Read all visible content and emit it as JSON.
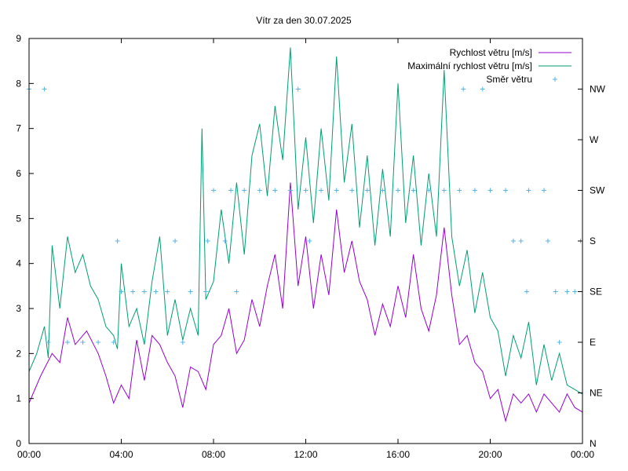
{
  "chart_data": {
    "type": "line",
    "title": "Vítr za den 30.07.2025",
    "xlabel": "",
    "ylabel": "",
    "x_range_minutes": [
      0,
      1440
    ],
    "x_ticks": [
      "00:00",
      "04:00",
      "08:00",
      "12:00",
      "16:00",
      "20:00",
      "00:00"
    ],
    "ylim": [
      0,
      9
    ],
    "y_ticks": [
      "0",
      "1",
      "2",
      "3",
      "4",
      "5",
      "6",
      "7",
      "8",
      "9"
    ],
    "y2_ticks": [
      "N",
      "NE",
      "E",
      "SE",
      "S",
      "SW",
      "W",
      "NW"
    ],
    "grid": false,
    "legend_position": "top-right",
    "series": [
      {
        "name": "Rychlost větru [m/s]",
        "color": "#9400d3",
        "style": "line",
        "points": [
          [
            "00:00",
            0.9
          ],
          [
            "00:30",
            1.5
          ],
          [
            "01:00",
            2.0
          ],
          [
            "01:20",
            1.8
          ],
          [
            "01:40",
            2.8
          ],
          [
            "02:00",
            2.2
          ],
          [
            "02:30",
            2.5
          ],
          [
            "03:00",
            2.0
          ],
          [
            "03:20",
            1.5
          ],
          [
            "03:40",
            0.9
          ],
          [
            "04:00",
            1.3
          ],
          [
            "04:20",
            1.0
          ],
          [
            "04:40",
            2.3
          ],
          [
            "05:00",
            1.4
          ],
          [
            "05:20",
            2.4
          ],
          [
            "05:40",
            2.2
          ],
          [
            "06:00",
            1.8
          ],
          [
            "06:20",
            1.5
          ],
          [
            "06:40",
            0.8
          ],
          [
            "07:00",
            1.7
          ],
          [
            "07:20",
            1.6
          ],
          [
            "07:40",
            1.2
          ],
          [
            "08:00",
            2.2
          ],
          [
            "08:20",
            2.4
          ],
          [
            "08:40",
            3.0
          ],
          [
            "09:00",
            2.0
          ],
          [
            "09:20",
            2.3
          ],
          [
            "09:40",
            3.2
          ],
          [
            "10:00",
            2.6
          ],
          [
            "10:20",
            3.5
          ],
          [
            "10:40",
            4.2
          ],
          [
            "11:00",
            3.0
          ],
          [
            "11:20",
            5.8
          ],
          [
            "11:40",
            3.5
          ],
          [
            "12:00",
            4.6
          ],
          [
            "12:20",
            3.0
          ],
          [
            "12:40",
            4.2
          ],
          [
            "13:00",
            3.3
          ],
          [
            "13:20",
            5.2
          ],
          [
            "13:40",
            3.8
          ],
          [
            "14:00",
            4.5
          ],
          [
            "14:20",
            3.6
          ],
          [
            "14:40",
            3.2
          ],
          [
            "15:00",
            2.4
          ],
          [
            "15:20",
            3.1
          ],
          [
            "15:40",
            2.6
          ],
          [
            "16:00",
            3.5
          ],
          [
            "16:20",
            2.8
          ],
          [
            "16:40",
            4.2
          ],
          [
            "17:00",
            3.0
          ],
          [
            "17:20",
            2.5
          ],
          [
            "17:40",
            3.3
          ],
          [
            "18:00",
            4.8
          ],
          [
            "18:20",
            3.3
          ],
          [
            "18:40",
            2.2
          ],
          [
            "19:00",
            2.4
          ],
          [
            "19:20",
            1.8
          ],
          [
            "19:40",
            1.6
          ],
          [
            "20:00",
            1.0
          ],
          [
            "20:20",
            1.2
          ],
          [
            "20:40",
            0.5
          ],
          [
            "21:00",
            1.1
          ],
          [
            "21:20",
            0.9
          ],
          [
            "21:40",
            1.1
          ],
          [
            "22:00",
            0.7
          ],
          [
            "22:20",
            1.1
          ],
          [
            "22:40",
            0.9
          ],
          [
            "23:00",
            0.7
          ],
          [
            "23:20",
            1.1
          ],
          [
            "23:40",
            0.8
          ],
          [
            "24:00",
            0.7
          ]
        ]
      },
      {
        "name": "Maximální rychlost větru [m/s]",
        "color": "#009e73",
        "style": "line",
        "points": [
          [
            "00:00",
            1.6
          ],
          [
            "00:20",
            2.0
          ],
          [
            "00:40",
            2.6
          ],
          [
            "00:50",
            1.9
          ],
          [
            "01:00",
            4.4
          ],
          [
            "01:20",
            3.0
          ],
          [
            "01:40",
            4.6
          ],
          [
            "02:00",
            3.8
          ],
          [
            "02:20",
            4.2
          ],
          [
            "02:40",
            3.5
          ],
          [
            "03:00",
            3.2
          ],
          [
            "03:20",
            2.6
          ],
          [
            "03:40",
            2.4
          ],
          [
            "03:50",
            2.1
          ],
          [
            "04:00",
            4.0
          ],
          [
            "04:20",
            2.6
          ],
          [
            "04:40",
            3.0
          ],
          [
            "05:00",
            2.2
          ],
          [
            "05:20",
            3.6
          ],
          [
            "05:40",
            4.6
          ],
          [
            "06:00",
            2.4
          ],
          [
            "06:20",
            3.2
          ],
          [
            "06:40",
            2.3
          ],
          [
            "07:00",
            3.0
          ],
          [
            "07:20",
            2.4
          ],
          [
            "07:30",
            7.0
          ],
          [
            "07:40",
            3.2
          ],
          [
            "08:00",
            3.6
          ],
          [
            "08:20",
            5.2
          ],
          [
            "08:40",
            4.0
          ],
          [
            "09:00",
            5.8
          ],
          [
            "09:20",
            4.2
          ],
          [
            "09:40",
            6.4
          ],
          [
            "10:00",
            7.1
          ],
          [
            "10:20",
            5.5
          ],
          [
            "10:40",
            7.5
          ],
          [
            "11:00",
            6.3
          ],
          [
            "11:20",
            8.8
          ],
          [
            "11:40",
            5.2
          ],
          [
            "12:00",
            6.8
          ],
          [
            "12:20",
            4.9
          ],
          [
            "12:40",
            7.0
          ],
          [
            "13:00",
            5.4
          ],
          [
            "13:20",
            8.6
          ],
          [
            "13:40",
            5.8
          ],
          [
            "14:00",
            7.1
          ],
          [
            "14:20",
            4.8
          ],
          [
            "14:40",
            6.4
          ],
          [
            "15:00",
            4.4
          ],
          [
            "15:20",
            6.1
          ],
          [
            "15:40",
            4.6
          ],
          [
            "16:00",
            8.0
          ],
          [
            "16:20",
            4.9
          ],
          [
            "16:40",
            6.4
          ],
          [
            "17:00",
            4.4
          ],
          [
            "17:20",
            6.0
          ],
          [
            "17:40",
            4.6
          ],
          [
            "18:00",
            8.3
          ],
          [
            "18:20",
            4.6
          ],
          [
            "18:40",
            3.5
          ],
          [
            "19:00",
            4.3
          ],
          [
            "19:20",
            2.9
          ],
          [
            "19:40",
            3.8
          ],
          [
            "20:00",
            2.8
          ],
          [
            "20:20",
            2.5
          ],
          [
            "20:40",
            1.5
          ],
          [
            "21:00",
            2.4
          ],
          [
            "21:20",
            1.9
          ],
          [
            "21:40",
            2.7
          ],
          [
            "22:00",
            1.3
          ],
          [
            "22:20",
            2.2
          ],
          [
            "22:40",
            1.4
          ],
          [
            "23:00",
            2.0
          ],
          [
            "23:20",
            1.3
          ],
          [
            "23:40",
            1.2
          ],
          [
            "24:00",
            1.1
          ]
        ]
      },
      {
        "name": "Směr větru",
        "color": "#56b4e9",
        "style": "points",
        "points": [
          [
            "00:00",
            "NW"
          ],
          [
            "00:40",
            "NW"
          ],
          [
            "00:50",
            "E"
          ],
          [
            "01:40",
            "E"
          ],
          [
            "02:20",
            "E"
          ],
          [
            "03:00",
            "E"
          ],
          [
            "03:40",
            "E"
          ],
          [
            "03:50",
            "S"
          ],
          [
            "04:00",
            "SE"
          ],
          [
            "04:30",
            "SE"
          ],
          [
            "05:00",
            "SE"
          ],
          [
            "05:30",
            "SE"
          ],
          [
            "06:00",
            "SE"
          ],
          [
            "06:20",
            "S"
          ],
          [
            "06:40",
            "E"
          ],
          [
            "07:00",
            "SE"
          ],
          [
            "07:40",
            "SE"
          ],
          [
            "07:45",
            "S"
          ],
          [
            "08:00",
            "SW"
          ],
          [
            "08:30",
            "S"
          ],
          [
            "08:45",
            "SW"
          ],
          [
            "09:00",
            "SE"
          ],
          [
            "09:20",
            "SW"
          ],
          [
            "10:00",
            "SW"
          ],
          [
            "10:40",
            "SW"
          ],
          [
            "11:20",
            "SW"
          ],
          [
            "11:40",
            "NW"
          ],
          [
            "12:00",
            "SW"
          ],
          [
            "12:10",
            "S"
          ],
          [
            "12:40",
            "SW"
          ],
          [
            "13:20",
            "SW"
          ],
          [
            "14:00",
            "SW"
          ],
          [
            "14:40",
            "SW"
          ],
          [
            "15:20",
            "SW"
          ],
          [
            "16:00",
            "SW"
          ],
          [
            "16:40",
            "SW"
          ],
          [
            "17:20",
            "SW"
          ],
          [
            "18:00",
            "SW"
          ],
          [
            "18:40",
            "SW"
          ],
          [
            "18:50",
            "NW"
          ],
          [
            "19:20",
            "SW"
          ],
          [
            "19:40",
            "NW"
          ],
          [
            "20:00",
            "SW"
          ],
          [
            "20:40",
            "SW"
          ],
          [
            "21:00",
            "S"
          ],
          [
            "21:20",
            "S"
          ],
          [
            "21:35",
            "SE"
          ],
          [
            "21:40",
            "SW"
          ],
          [
            "22:20",
            "SW"
          ],
          [
            "22:30",
            "S"
          ],
          [
            "22:50",
            "SE"
          ],
          [
            "23:00",
            "E"
          ],
          [
            "23:20",
            "SE"
          ],
          [
            "23:40",
            "SE"
          ],
          [
            "23:55",
            "S"
          ]
        ]
      }
    ]
  }
}
